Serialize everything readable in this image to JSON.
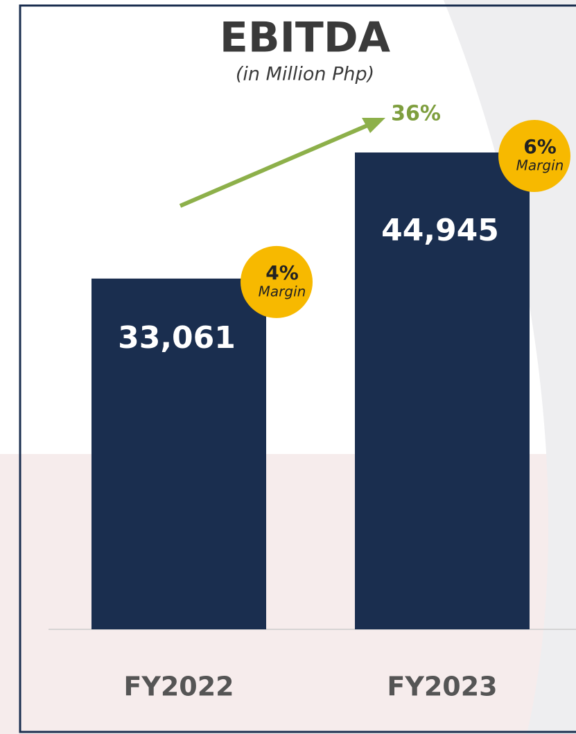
{
  "chart_data": {
    "type": "bar",
    "title": "EBITDA",
    "subtitle": "(in Million Php)",
    "categories": [
      "FY2022",
      "FY2023"
    ],
    "values": [
      33061,
      44945
    ],
    "value_labels": [
      "33,061",
      "44,945"
    ],
    "color": "#1a2e4f",
    "annotations": {
      "growth": "36%",
      "margins": [
        "4%",
        "6%"
      ],
      "margin_caption": "Margin"
    }
  }
}
